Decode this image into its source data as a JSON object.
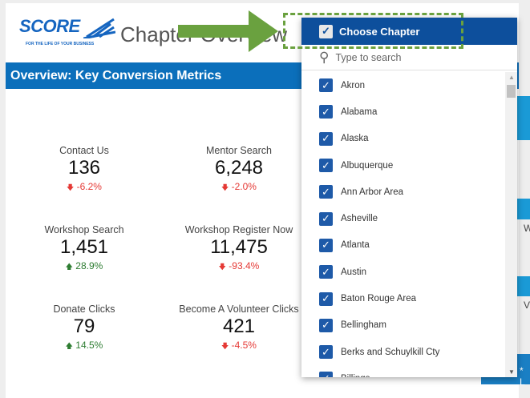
{
  "header": {
    "logo_text": "SCORE",
    "logo_tagline": "FOR THE LIFE OF YOUR BUSINESS",
    "title": "Chapter Overview"
  },
  "section_title": "Overview: Key Conversion Metrics",
  "metrics": [
    {
      "label": "Contact Us",
      "value": "136",
      "change": "-6.2%",
      "dir": "down",
      "arrow": "🡇"
    },
    {
      "label": "Mentor Search",
      "value": "6,248",
      "change": "-2.0%",
      "dir": "down",
      "arrow": "🡇"
    },
    {
      "label": "Workshop Search",
      "value": "1,451",
      "change": "28.9%",
      "dir": "up",
      "arrow": "🡅"
    },
    {
      "label": "Workshop Register Now",
      "value": "11,475",
      "change": "-93.4%",
      "dir": "down",
      "arrow": "🡇"
    },
    {
      "label": "Donate Clicks",
      "value": "79",
      "change": "14.5%",
      "dir": "up",
      "arrow": "🡅"
    },
    {
      "label": "Become A Volunteer Clicks",
      "value": "421",
      "change": "-4.5%",
      "dir": "down",
      "arrow": "🡇"
    }
  ],
  "dropdown": {
    "header": "Choose Chapter",
    "search_placeholder": "Type to search",
    "items": [
      "Akron",
      "Alabama",
      "Alaska",
      "Albuquerque",
      "Ann Arbor Area",
      "Asheville",
      "Atlanta",
      "Austin",
      "Baton Rouge Area",
      "Bellingham",
      "Berks and Schuylkill Cty",
      "Billings"
    ]
  },
  "side": {
    "w1": "W",
    "w2": "V",
    "footer": "* L"
  },
  "colors": {
    "brand": "#0b6fbb",
    "dropdown_header": "#0d4f9c",
    "annotation": "#6aa13f"
  }
}
